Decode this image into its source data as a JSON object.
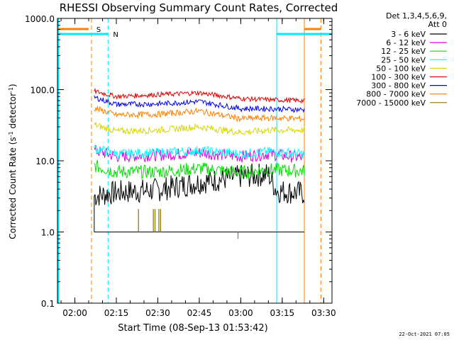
{
  "chart_data": {
    "type": "line",
    "title": "RHESSI Observing Summary Count Rates, Corrected",
    "xlabel": "Start Time (08-Sep-13 01:53:42)",
    "ylabel": "Corrected Count Rate (s-1 detector-1)",
    "y_scale": "log",
    "ylim": [
      0.1,
      1000
    ],
    "xlim": [
      "01:53:42",
      "03:33:00"
    ],
    "x_ticks": [
      "02:00",
      "02:15",
      "02:30",
      "02:45",
      "03:00",
      "03:15",
      "03:30"
    ],
    "y_ticks": [
      "0.1",
      "1.0",
      "10.0",
      "100.0",
      "1000.0"
    ],
    "legend": {
      "header": [
        "Det 1,3,4,5,6,9,",
        "Att 0"
      ],
      "position": "outside-right"
    },
    "markers": [
      {
        "label": "S",
        "time": "02:06",
        "color": "#ff8000",
        "style": "dashed"
      },
      {
        "label": "N",
        "time": "02:12",
        "color": "#00e8ff",
        "style": "dashed"
      },
      {
        "label": "",
        "time": "03:23",
        "color": "#ff8000",
        "style": "solid"
      },
      {
        "label": "",
        "time": "03:13",
        "color": "#00e8ff",
        "style": "solid"
      },
      {
        "label": "",
        "time": "03:29",
        "color": "#ff8000",
        "style": "dashed"
      }
    ],
    "series": [
      {
        "name": "3 - 6 keV",
        "color": "#000000",
        "x": [
          "02:07",
          "02:15",
          "02:30",
          "02:45",
          "03:00",
          "03:10",
          "03:13",
          "03:23"
        ],
        "values": [
          3.2,
          3.6,
          3.9,
          5.0,
          6.0,
          6.5,
          3.8,
          3.5
        ]
      },
      {
        "name": "6 - 12 keV",
        "color": "#e000e0",
        "x": [
          "02:07",
          "02:15",
          "02:30",
          "02:45",
          "03:00",
          "03:10",
          "03:23"
        ],
        "values": [
          14,
          11.5,
          12,
          13,
          11.5,
          12.5,
          11
        ]
      },
      {
        "name": "12 - 25 keV",
        "color": "#00e000",
        "x": [
          "02:07",
          "02:15",
          "02:30",
          "02:45",
          "03:00",
          "03:10",
          "03:23"
        ],
        "values": [
          8.5,
          7.0,
          7.0,
          7.8,
          6.9,
          7.5,
          7.2
        ]
      },
      {
        "name": "25 - 50 keV",
        "color": "#00ffff",
        "x": [
          "02:07",
          "02:15",
          "02:30",
          "02:45",
          "03:00",
          "03:10",
          "03:23"
        ],
        "values": [
          15,
          12.5,
          13,
          14,
          12.5,
          13.5,
          12.5
        ]
      },
      {
        "name": "50 - 100 keV",
        "color": "#d8d800",
        "x": [
          "02:07",
          "02:15",
          "02:30",
          "02:45",
          "03:00",
          "03:10",
          "03:23"
        ],
        "values": [
          32,
          26,
          27,
          30,
          25,
          27,
          27
        ]
      },
      {
        "name": "100 - 300 keV",
        "color": "#e00000",
        "x": [
          "02:07",
          "02:15",
          "02:30",
          "02:45",
          "03:00",
          "03:10",
          "03:23"
        ],
        "values": [
          95,
          80,
          85,
          90,
          75,
          72,
          70
        ]
      },
      {
        "name": "300 - 800 keV",
        "color": "#0000e8",
        "x": [
          "02:07",
          "02:15",
          "02:30",
          "02:45",
          "03:00",
          "03:10",
          "03:23"
        ],
        "values": [
          78,
          62,
          63,
          68,
          54,
          54,
          52
        ]
      },
      {
        "name": "800 - 7000 keV",
        "color": "#ff8000",
        "x": [
          "02:07",
          "02:15",
          "02:30",
          "02:45",
          "03:00",
          "03:10",
          "03:23"
        ],
        "values": [
          55,
          44,
          45,
          50,
          39,
          40,
          39
        ]
      },
      {
        "name": "7000 - 15000 keV",
        "color": "#8a7000",
        "x": [
          "02:07",
          "02:15",
          "02:30",
          "02:45",
          "03:00",
          "03:10",
          "03:23"
        ],
        "values": [
          1.0,
          1.0,
          1.0,
          1.0,
          1.0,
          1.0,
          1.0
        ]
      }
    ],
    "spikes": {
      "series": "7000 - 15000 keV",
      "times": [
        "02:23",
        "02:28",
        "02:29",
        "02:30",
        "02:31"
      ],
      "peak": 2.1
    }
  },
  "footer": "22-Oct-2021 07:05"
}
